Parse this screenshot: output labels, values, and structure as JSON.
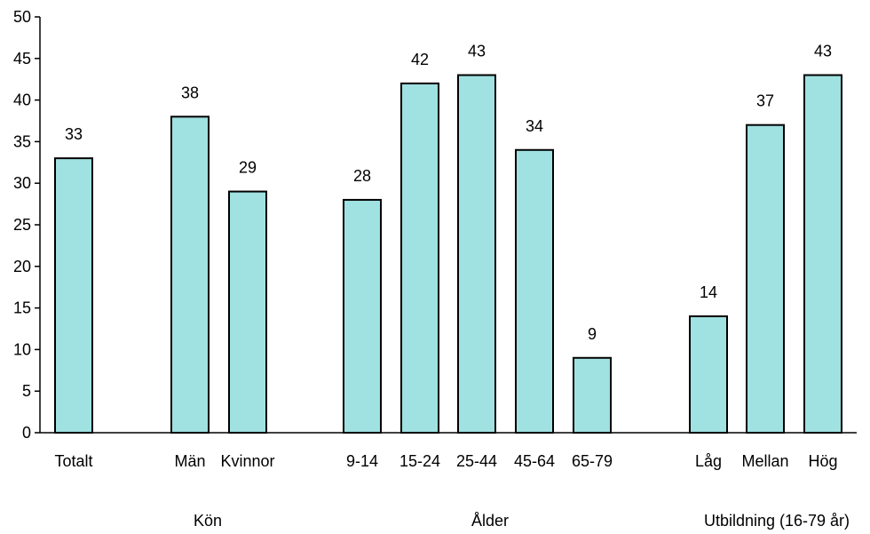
{
  "chart_data": {
    "type": "bar",
    "categories": [
      "Totalt",
      "Män",
      "Kvinnor",
      "9-14",
      "15-24",
      "25-44",
      "45-64",
      "65-79",
      "Låg",
      "Mellan",
      "Hög"
    ],
    "values": [
      33,
      38,
      29,
      28,
      42,
      43,
      34,
      9,
      14,
      37,
      43
    ],
    "data_labels": [
      "33",
      "38",
      "29",
      "28",
      "42",
      "43",
      "34",
      "9",
      "14",
      "37",
      "43"
    ],
    "groups": [
      {
        "label": "Kön",
        "categories": [
          "Män",
          "Kvinnor"
        ]
      },
      {
        "label": "Ålder",
        "categories": [
          "9-14",
          "15-24",
          "25-44",
          "45-64",
          "65-79"
        ]
      },
      {
        "label": "Utbildning (16-79 år)",
        "categories": [
          "Låg",
          "Mellan",
          "Hög"
        ]
      }
    ],
    "ylim": [
      0,
      50
    ],
    "yticks": [
      0,
      5,
      10,
      15,
      20,
      25,
      30,
      35,
      40,
      45,
      50
    ],
    "title": "",
    "xlabel": "",
    "ylabel": "",
    "grid": false,
    "legend": "none",
    "colors": {
      "bar_fill": "#a0e1e1",
      "bar_stroke": "#000000",
      "axis": "#000000"
    }
  }
}
